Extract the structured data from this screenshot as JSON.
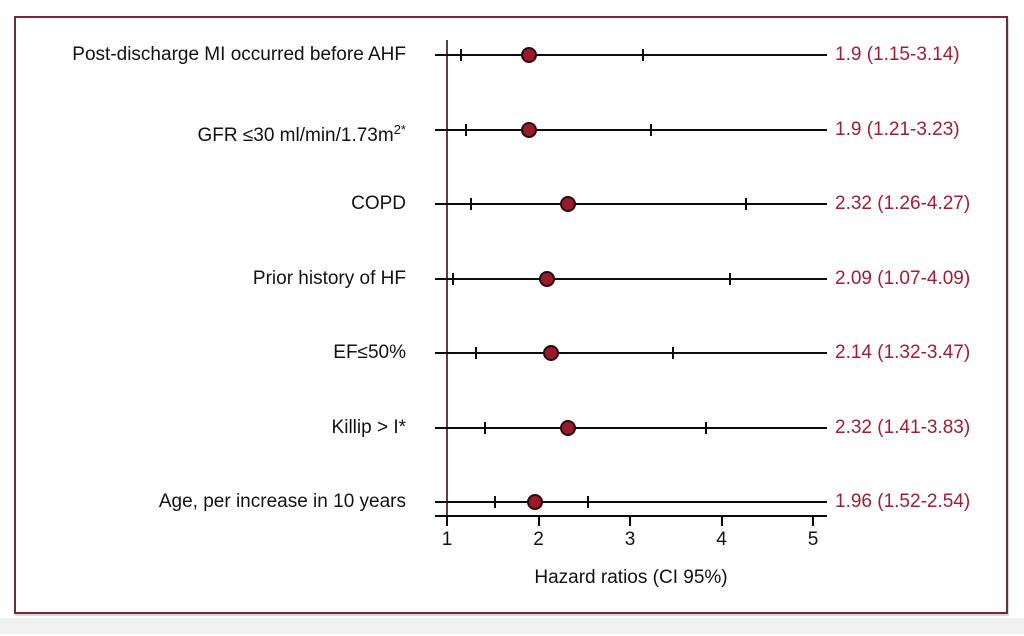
{
  "chart_data": {
    "type": "forest",
    "xlabel": "Hazard ratios (CI 95%)",
    "x_ticks": [
      "1",
      "2",
      "3",
      "4",
      "5"
    ],
    "xlim": [
      1,
      5
    ],
    "reference_line_x": 1,
    "grid": false,
    "rows": [
      {
        "label": "Post-discharge MI occurred before AHF",
        "label_sup": "",
        "estimate": 1.9,
        "ci_low": 1.15,
        "ci_high": 3.14,
        "value_text": "1.9 (1.15-3.14)"
      },
      {
        "label": "GFR ≤30 ml/min/1.73m",
        "label_sup": "2*",
        "estimate": 1.9,
        "ci_low": 1.21,
        "ci_high": 3.23,
        "value_text": "1.9 (1.21-3.23)"
      },
      {
        "label": "COPD",
        "label_sup": "",
        "estimate": 2.32,
        "ci_low": 1.26,
        "ci_high": 4.27,
        "value_text": "2.32 (1.26-4.27)"
      },
      {
        "label": "Prior history of HF",
        "label_sup": "",
        "estimate": 2.09,
        "ci_low": 1.07,
        "ci_high": 4.09,
        "value_text": "2.09 (1.07-4.09)"
      },
      {
        "label": "EF≤50%",
        "label_sup": "",
        "estimate": 2.14,
        "ci_low": 1.32,
        "ci_high": 3.47,
        "value_text": "2.14 (1.32-3.47)"
      },
      {
        "label": "Killip > I*",
        "label_sup": "",
        "estimate": 2.32,
        "ci_low": 1.41,
        "ci_high": 3.83,
        "value_text": "2.32 (1.41-3.83)"
      },
      {
        "label": "Age, per increase in 10 years",
        "label_sup": "",
        "estimate": 1.96,
        "ci_low": 1.52,
        "ci_high": 2.54,
        "value_text": "1.96 (1.52-2.54)"
      }
    ]
  },
  "colors": {
    "marker_fill": "#9b1a2a",
    "value_text": "#9e1e33",
    "reference_line": "#6b3942",
    "frame_border": "#6d2c38",
    "line": "#0b0b0b"
  }
}
